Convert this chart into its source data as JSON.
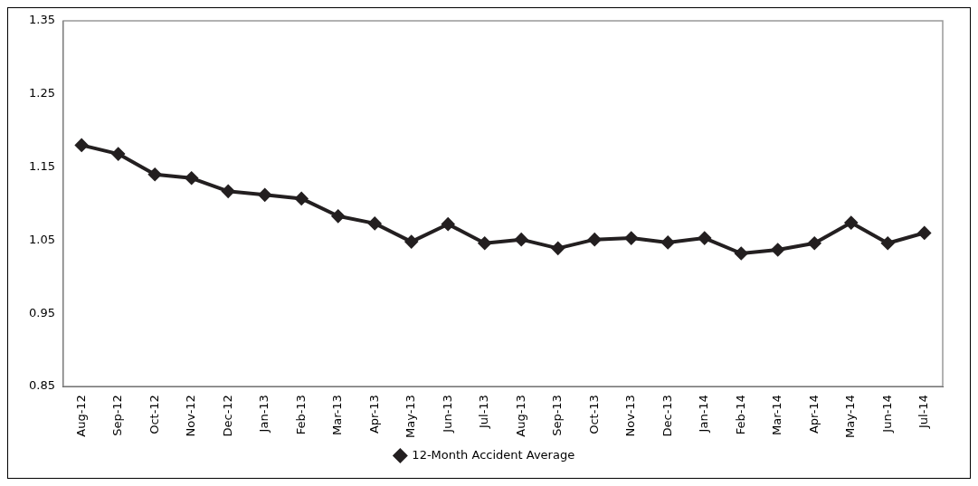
{
  "chart_data": {
    "type": "line",
    "categories": [
      "Aug-12",
      "Sep-12",
      "Oct-12",
      "Nov-12",
      "Dec-12",
      "Jan-13",
      "Feb-13",
      "Mar-13",
      "Apr-13",
      "May-13",
      "Jun-13",
      "Jul-13",
      "Aug-13",
      "Sep-13",
      "Oct-13",
      "Nov-13",
      "Dec-13",
      "Jan-14",
      "Feb-14",
      "Mar-14",
      "Apr-14",
      "May-14",
      "Jun-14",
      "Jul-14"
    ],
    "series": [
      {
        "name": "12-Month Accident Average",
        "color": "#231f20",
        "values": [
          1.18,
          1.168,
          1.14,
          1.135,
          1.117,
          1.112,
          1.107,
          1.083,
          1.073,
          1.048,
          1.072,
          1.046,
          1.051,
          1.039,
          1.051,
          1.053,
          1.047,
          1.053,
          1.032,
          1.037,
          1.046,
          1.074,
          1.046,
          1.06
        ]
      }
    ],
    "ylim": [
      0.85,
      1.35
    ],
    "yticks": [
      0.85,
      0.95,
      1.05,
      1.15,
      1.25,
      1.35
    ],
    "grid": false,
    "legend": "bottom",
    "marker": "diamond",
    "line_style": "solid"
  }
}
